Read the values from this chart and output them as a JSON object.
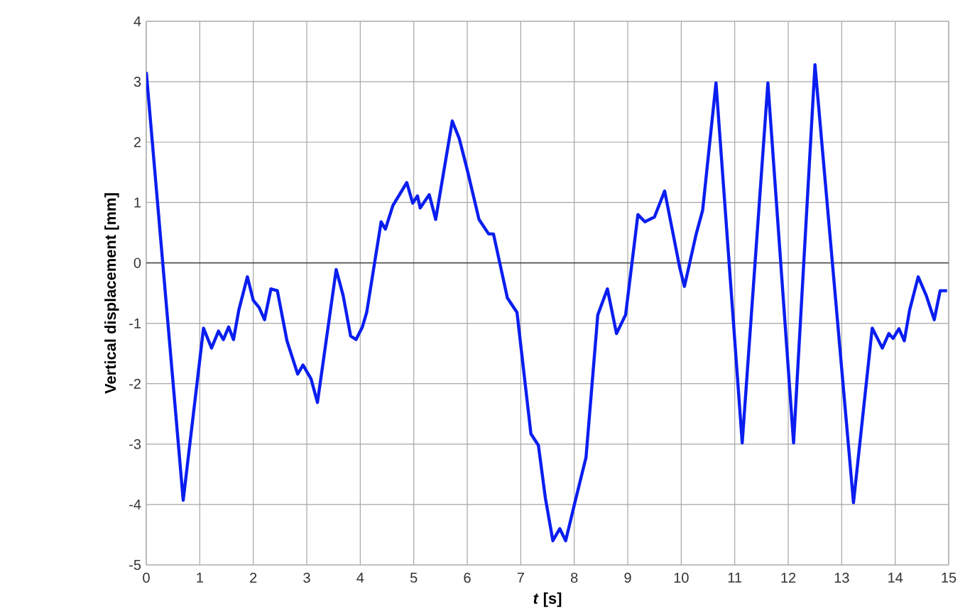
{
  "chart_data": {
    "type": "line",
    "xlabel": "*t* [s]",
    "ylabel": "Vertical displacement [mm]",
    "xlim": [
      0,
      15
    ],
    "ylim": [
      -5,
      4
    ],
    "xticks": [
      0,
      1,
      2,
      3,
      4,
      5,
      6,
      7,
      8,
      9,
      10,
      11,
      12,
      13,
      14,
      15
    ],
    "yticks": [
      -5,
      -4,
      -3,
      -2,
      -1,
      0,
      1,
      2,
      3,
      4
    ],
    "grid": true,
    "series": [
      {
        "color": "#0a1ef0",
        "x": [
          0,
          0.69,
          1.07,
          1.22,
          1.35,
          1.44,
          1.54,
          1.63,
          1.73,
          1.89,
          2.0,
          2.11,
          2.21,
          2.33,
          2.45,
          2.63,
          2.83,
          2.93,
          3.08,
          3.2,
          3.55,
          3.68,
          3.82,
          3.92,
          4.04,
          4.12,
          4.39,
          4.47,
          4.61,
          4.87,
          4.98,
          5.07,
          5.12,
          5.29,
          5.41,
          5.72,
          5.85,
          6.0,
          6.22,
          6.4,
          6.49,
          6.75,
          6.93,
          7.19,
          7.33,
          7.46,
          7.6,
          7.73,
          7.84,
          8.0,
          8.22,
          8.44,
          8.62,
          8.79,
          8.96,
          9.19,
          9.32,
          9.5,
          9.69,
          9.97,
          10.06,
          10.28,
          10.4,
          10.65,
          11.14,
          11.62,
          12.1,
          12.5,
          13.22,
          13.57,
          13.76,
          13.88,
          13.96,
          14.07,
          14.17,
          14.27,
          14.43,
          14.58,
          14.73,
          14.84,
          14.97
        ],
        "values": [
          3.16,
          -3.93,
          -1.08,
          -1.41,
          -1.13,
          -1.27,
          -1.06,
          -1.27,
          -0.78,
          -0.23,
          -0.62,
          -0.74,
          -0.94,
          -0.43,
          -0.46,
          -1.29,
          -1.84,
          -1.69,
          -1.92,
          -2.31,
          -0.11,
          -0.54,
          -1.21,
          -1.27,
          -1.06,
          -0.82,
          0.68,
          0.56,
          0.95,
          1.33,
          0.99,
          1.11,
          0.91,
          1.13,
          0.72,
          2.35,
          2.06,
          1.54,
          0.72,
          0.48,
          0.48,
          -0.58,
          -0.82,
          -2.83,
          -3.02,
          -3.89,
          -4.6,
          -4.4,
          -4.6,
          -4.01,
          -3.22,
          -0.86,
          -0.43,
          -1.17,
          -0.86,
          0.8,
          0.68,
          0.76,
          1.19,
          -0.07,
          -0.39,
          0.48,
          0.87,
          2.98,
          -2.98,
          2.98,
          -2.98,
          3.28,
          -3.97,
          -1.08,
          -1.41,
          -1.17,
          -1.25,
          -1.09,
          -1.29,
          -0.78,
          -0.23,
          -0.54,
          -0.94,
          -0.46,
          -0.46
        ]
      }
    ]
  }
}
